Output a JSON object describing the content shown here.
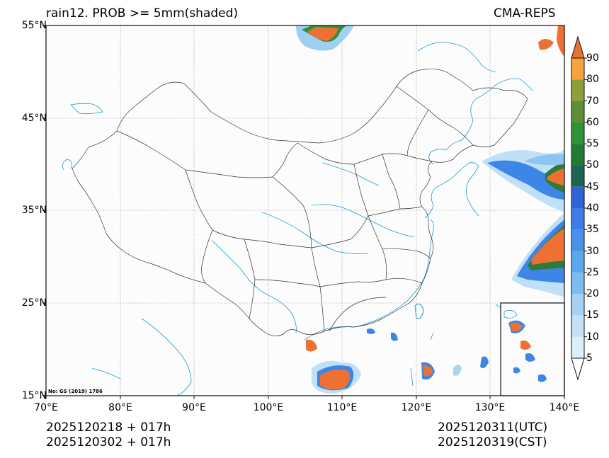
{
  "title": {
    "left": "rain12. PROB >= 5mm(shaded)",
    "right": "CMA-REPS"
  },
  "axes": {
    "lat_labels": [
      "55°N",
      "45°N",
      "35°N",
      "25°N",
      "15°N"
    ],
    "lon_labels": [
      "70°E",
      "80°E",
      "90°E",
      "100°E",
      "110°E",
      "120°E",
      "130°E",
      "140°E"
    ]
  },
  "footer": {
    "init_utc": "2025120218  +  017h",
    "init_cst": "2025120302  +  017h",
    "valid_utc": "2025120311(UTC)",
    "valid_cst": "2025120319(CST)"
  },
  "map_note": "No: GS (2019) 1786",
  "extent": {
    "lon": [
      70,
      140
    ],
    "lat": [
      15,
      55
    ]
  },
  "colorbar": {
    "levels": [
      "5",
      "10",
      "15",
      "20",
      "25",
      "30",
      "35",
      "40",
      "45",
      "50",
      "55",
      "60",
      "70",
      "80",
      "90"
    ],
    "colors": [
      "#ddeefb",
      "#c3e0f6",
      "#a5d0f2",
      "#7cbcee",
      "#5aa7ea",
      "#4a8fe8",
      "#3f7ae6",
      "#2f64d6",
      "#1e6555",
      "#227a35",
      "#2f9236",
      "#5c8e36",
      "#8f9e3c",
      "#f7a23c",
      "#f07d30",
      "#e8733a"
    ]
  },
  "colors": {
    "coast": "#1e9ad6",
    "border": "#222222",
    "heavy": "#ee7133",
    "mid": "#3d86e6",
    "light": "#a9d4f4",
    "green": "#3a8a3a"
  }
}
